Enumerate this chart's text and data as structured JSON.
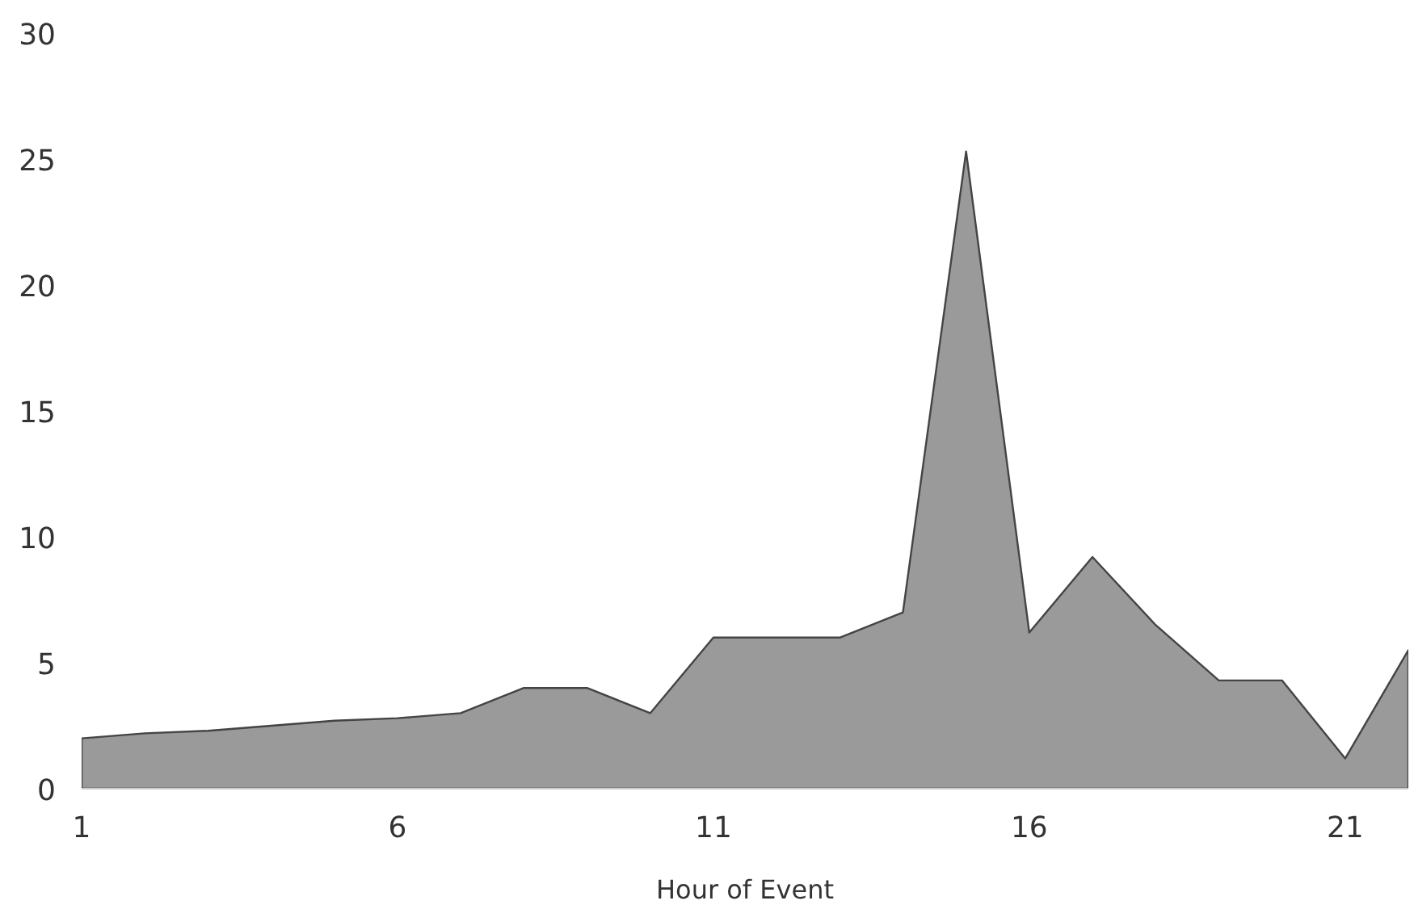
{
  "chart_data": {
    "type": "area",
    "xlabel": "Hour of Event",
    "x": [
      1,
      2,
      3,
      4,
      5,
      6,
      7,
      8,
      9,
      10,
      11,
      12,
      13,
      14,
      15,
      16,
      17,
      18,
      19,
      20,
      21,
      22
    ],
    "series": [
      {
        "color": "#9a9a9a",
        "values": [
          2.0,
          2.2,
          2.3,
          2.5,
          2.7,
          2.8,
          3.0,
          4.0,
          4.0,
          3.0,
          6.0,
          6.0,
          6.0,
          7.0,
          25.3,
          6.2,
          9.2,
          6.5,
          4.3,
          4.3,
          1.2,
          5.5
        ]
      }
    ],
    "xlim": [
      1,
      22
    ],
    "ylim": [
      0,
      30
    ],
    "xticks": [
      1,
      6,
      11,
      16,
      21
    ],
    "yticks": [
      0,
      5,
      10,
      15,
      20,
      25,
      30
    ]
  }
}
